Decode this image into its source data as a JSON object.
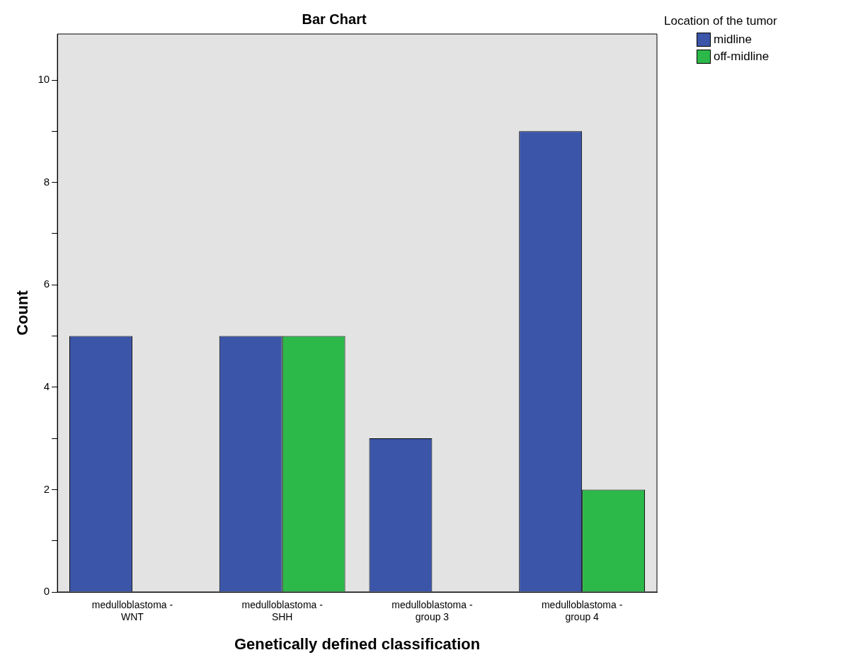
{
  "chart_data": {
    "type": "bar",
    "title": "Bar Chart",
    "xlabel": "Genetically defined classification",
    "ylabel": "Count",
    "legend_title": "Location of the tumor",
    "categories": [
      "medulloblastoma - WNT",
      "medulloblastoma - SHH",
      "medulloblastoma - group 3",
      "medulloblastoma - group 4"
    ],
    "series": [
      {
        "name": "midline",
        "color": "#3b55a8",
        "values": [
          5,
          5,
          3,
          9
        ]
      },
      {
        "name": "off-midline",
        "color": "#2db84a",
        "values": [
          null,
          5,
          null,
          2
        ]
      }
    ],
    "ylim": [
      0,
      10.9
    ],
    "yticks": [
      0,
      {
        "value": 1,
        "label": null
      },
      2,
      {
        "value": 3,
        "label": null
      },
      4,
      {
        "value": 5,
        "label": null
      },
      6,
      {
        "value": 7,
        "label": null
      },
      8,
      {
        "value": 9,
        "label": null
      },
      10
    ],
    "grid": false,
    "legend": "top right"
  }
}
